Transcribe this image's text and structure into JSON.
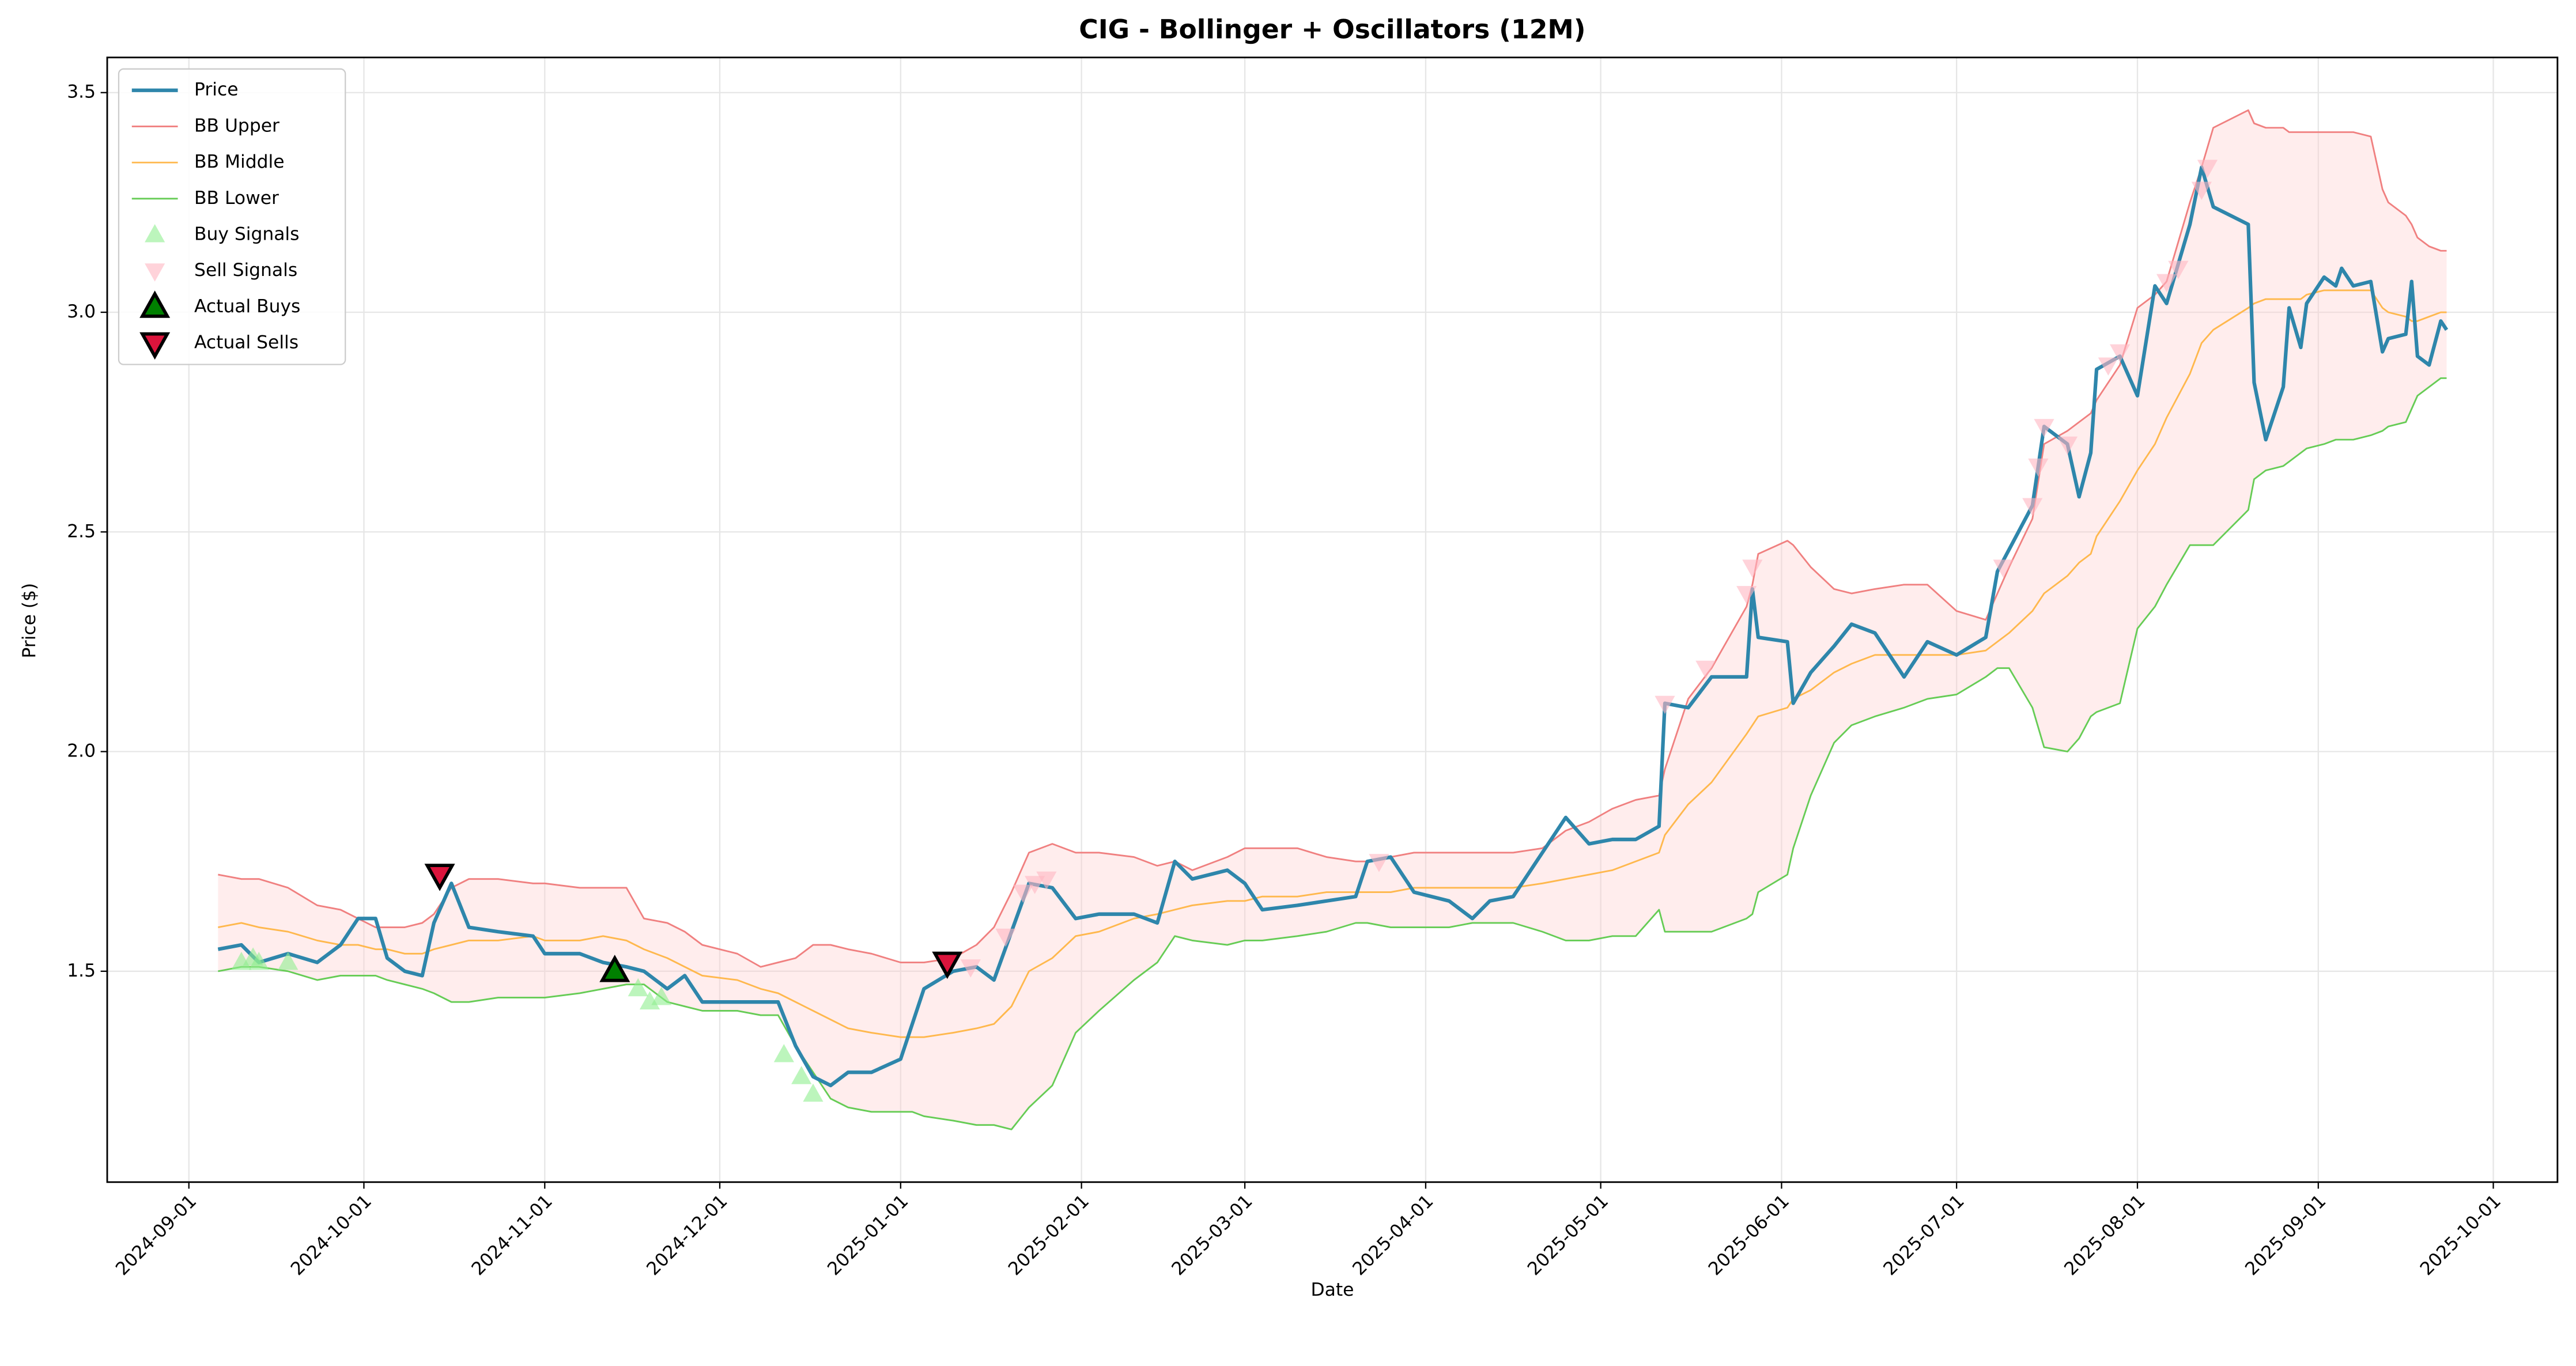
{
  "chart_data": {
    "type": "line",
    "title": "CIG - Bollinger + Oscillators (12M)",
    "xlabel": "Date",
    "ylabel": "Price ($)",
    "x": [
      "2024-09-06",
      "2024-09-10",
      "2024-09-13",
      "2024-09-18",
      "2024-09-23",
      "2024-09-27",
      "2024-09-30",
      "2024-10-03",
      "2024-10-05",
      "2024-10-08",
      "2024-10-11",
      "2024-10-13",
      "2024-10-16",
      "2024-10-19",
      "2024-10-24",
      "2024-10-30",
      "2024-11-01",
      "2024-11-07",
      "2024-11-11",
      "2024-11-15",
      "2024-11-18",
      "2024-11-22",
      "2024-11-25",
      "2024-11-28",
      "2024-12-04",
      "2024-12-08",
      "2024-12-11",
      "2024-12-14",
      "2024-12-17",
      "2024-12-20",
      "2024-12-23",
      "2024-12-27",
      "2025-01-01",
      "2025-01-03",
      "2025-01-05",
      "2025-01-10",
      "2025-01-14",
      "2025-01-17",
      "2025-01-20",
      "2025-01-23",
      "2025-01-27",
      "2025-01-31",
      "2025-02-04",
      "2025-02-10",
      "2025-02-14",
      "2025-02-17",
      "2025-02-20",
      "2025-02-26",
      "2025-03-01",
      "2025-03-04",
      "2025-03-10",
      "2025-03-15",
      "2025-03-20",
      "2025-03-22",
      "2025-03-26",
      "2025-03-30",
      "2025-04-05",
      "2025-04-09",
      "2025-04-12",
      "2025-04-16",
      "2025-04-21",
      "2025-04-25",
      "2025-04-29",
      "2025-05-03",
      "2025-05-07",
      "2025-05-11",
      "2025-05-12",
      "2025-05-16",
      "2025-05-20",
      "2025-05-26",
      "2025-05-27",
      "2025-05-28",
      "2025-06-02",
      "2025-06-03",
      "2025-06-06",
      "2025-06-10",
      "2025-06-13",
      "2025-06-17",
      "2025-06-22",
      "2025-06-26",
      "2025-07-01",
      "2025-07-06",
      "2025-07-08",
      "2025-07-10",
      "2025-07-14",
      "2025-07-16",
      "2025-07-20",
      "2025-07-22",
      "2025-07-24",
      "2025-07-25",
      "2025-07-29",
      "2025-08-01",
      "2025-08-04",
      "2025-08-06",
      "2025-08-10",
      "2025-08-12",
      "2025-08-14",
      "2025-08-20",
      "2025-08-21",
      "2025-08-23",
      "2025-08-26",
      "2025-08-27",
      "2025-08-29",
      "2025-08-30",
      "2025-09-02",
      "2025-09-04",
      "2025-09-05",
      "2025-09-07",
      "2025-09-10",
      "2025-09-12",
      "2025-09-13",
      "2025-09-16",
      "2025-09-17",
      "2025-09-18",
      "2025-09-20",
      "2025-09-22",
      "2025-09-23"
    ],
    "series": [
      {
        "name": "Price",
        "color": "#2e86ab",
        "width": 2.2,
        "values": [
          1.55,
          1.56,
          1.52,
          1.54,
          1.52,
          1.56,
          1.62,
          1.62,
          1.53,
          1.5,
          1.49,
          1.61,
          1.7,
          1.6,
          1.59,
          1.58,
          1.54,
          1.54,
          1.52,
          1.51,
          1.5,
          1.46,
          1.49,
          1.43,
          1.43,
          1.43,
          1.43,
          1.33,
          1.26,
          1.24,
          1.27,
          1.27,
          1.3,
          1.38,
          1.46,
          1.5,
          1.51,
          1.48,
          1.59,
          1.7,
          1.69,
          1.62,
          1.63,
          1.63,
          1.61,
          1.75,
          1.71,
          1.73,
          1.7,
          1.64,
          1.65,
          1.66,
          1.67,
          1.75,
          1.76,
          1.68,
          1.66,
          1.62,
          1.66,
          1.67,
          1.77,
          1.85,
          1.79,
          1.8,
          1.8,
          1.83,
          2.11,
          2.1,
          2.17,
          2.17,
          2.37,
          2.26,
          2.25,
          2.11,
          2.18,
          2.24,
          2.29,
          2.27,
          2.17,
          2.25,
          2.22,
          2.26,
          2.41,
          2.46,
          2.56,
          2.74,
          2.7,
          2.58,
          2.68,
          2.87,
          2.9,
          2.81,
          3.06,
          3.02,
          3.2,
          3.33,
          3.24,
          3.2,
          2.84,
          2.71,
          2.83,
          3.01,
          2.92,
          3.02,
          3.08,
          3.06,
          3.1,
          3.06,
          3.07,
          2.91,
          2.94,
          2.95,
          3.07,
          2.9,
          2.88,
          2.98,
          2.96
        ]
      },
      {
        "name": "BB Upper",
        "color": "#f08080",
        "width": 1,
        "values": [
          1.72,
          1.71,
          1.71,
          1.69,
          1.65,
          1.64,
          1.62,
          1.6,
          1.6,
          1.6,
          1.61,
          1.63,
          1.69,
          1.71,
          1.71,
          1.7,
          1.7,
          1.69,
          1.69,
          1.69,
          1.62,
          1.61,
          1.59,
          1.56,
          1.54,
          1.51,
          1.52,
          1.53,
          1.56,
          1.56,
          1.55,
          1.54,
          1.52,
          1.52,
          1.52,
          1.53,
          1.56,
          1.6,
          1.68,
          1.77,
          1.79,
          1.77,
          1.77,
          1.76,
          1.74,
          1.75,
          1.73,
          1.76,
          1.78,
          1.78,
          1.78,
          1.76,
          1.75,
          1.75,
          1.76,
          1.77,
          1.77,
          1.77,
          1.77,
          1.77,
          1.78,
          1.82,
          1.84,
          1.87,
          1.89,
          1.9,
          1.96,
          2.12,
          2.19,
          2.33,
          2.38,
          2.45,
          2.48,
          2.47,
          2.42,
          2.37,
          2.36,
          2.37,
          2.38,
          2.38,
          2.32,
          2.3,
          2.36,
          2.42,
          2.53,
          2.7,
          2.73,
          2.75,
          2.77,
          2.8,
          2.88,
          3.01,
          3.04,
          3.07,
          3.25,
          3.33,
          3.42,
          3.46,
          3.43,
          3.42,
          3.42,
          3.41,
          3.41,
          3.41,
          3.41,
          3.41,
          3.41,
          3.41,
          3.4,
          3.28,
          3.25,
          3.22,
          3.2,
          3.17,
          3.15,
          3.14,
          3.14
        ]
      },
      {
        "name": "BB Middle",
        "color": "#ffb84d",
        "width": 1,
        "values": [
          1.6,
          1.61,
          1.6,
          1.59,
          1.57,
          1.56,
          1.56,
          1.55,
          1.55,
          1.54,
          1.54,
          1.55,
          1.56,
          1.57,
          1.57,
          1.58,
          1.57,
          1.57,
          1.58,
          1.57,
          1.55,
          1.53,
          1.51,
          1.49,
          1.48,
          1.46,
          1.45,
          1.43,
          1.41,
          1.39,
          1.37,
          1.36,
          1.35,
          1.35,
          1.35,
          1.36,
          1.37,
          1.38,
          1.42,
          1.5,
          1.53,
          1.58,
          1.59,
          1.62,
          1.63,
          1.64,
          1.65,
          1.66,
          1.66,
          1.67,
          1.67,
          1.68,
          1.68,
          1.68,
          1.68,
          1.69,
          1.69,
          1.69,
          1.69,
          1.69,
          1.7,
          1.71,
          1.72,
          1.73,
          1.75,
          1.77,
          1.81,
          1.88,
          1.93,
          2.04,
          2.06,
          2.08,
          2.1,
          2.12,
          2.14,
          2.18,
          2.2,
          2.22,
          2.22,
          2.22,
          2.22,
          2.23,
          2.25,
          2.27,
          2.32,
          2.36,
          2.4,
          2.43,
          2.45,
          2.49,
          2.57,
          2.64,
          2.7,
          2.76,
          2.86,
          2.93,
          2.96,
          3.01,
          3.02,
          3.03,
          3.03,
          3.03,
          3.03,
          3.04,
          3.05,
          3.05,
          3.05,
          3.05,
          3.05,
          3.01,
          3.0,
          2.99,
          2.98,
          2.98,
          2.99,
          3.0,
          3.0
        ]
      },
      {
        "name": "BB Lower",
        "color": "#66cc55",
        "width": 1,
        "values": [
          1.5,
          1.51,
          1.51,
          1.5,
          1.48,
          1.49,
          1.49,
          1.49,
          1.48,
          1.47,
          1.46,
          1.45,
          1.43,
          1.43,
          1.44,
          1.44,
          1.44,
          1.45,
          1.46,
          1.47,
          1.47,
          1.43,
          1.42,
          1.41,
          1.41,
          1.4,
          1.4,
          1.33,
          1.27,
          1.21,
          1.19,
          1.18,
          1.18,
          1.18,
          1.17,
          1.16,
          1.15,
          1.15,
          1.14,
          1.19,
          1.24,
          1.36,
          1.41,
          1.48,
          1.52,
          1.58,
          1.57,
          1.56,
          1.57,
          1.57,
          1.58,
          1.59,
          1.61,
          1.61,
          1.6,
          1.6,
          1.6,
          1.61,
          1.61,
          1.61,
          1.59,
          1.57,
          1.57,
          1.58,
          1.58,
          1.64,
          1.59,
          1.59,
          1.59,
          1.62,
          1.63,
          1.68,
          1.72,
          1.78,
          1.9,
          2.02,
          2.06,
          2.08,
          2.1,
          2.12,
          2.13,
          2.17,
          2.19,
          2.19,
          2.1,
          2.01,
          2.0,
          2.03,
          2.08,
          2.09,
          2.11,
          2.28,
          2.33,
          2.38,
          2.47,
          2.47,
          2.47,
          2.55,
          2.62,
          2.64,
          2.65,
          2.66,
          2.68,
          2.69,
          2.7,
          2.71,
          2.71,
          2.71,
          2.72,
          2.73,
          2.74,
          2.75,
          2.78,
          2.81,
          2.83,
          2.85,
          2.85
        ]
      }
    ],
    "band_fill": "#ffcccc",
    "scatter_series": [
      {
        "name": "Buy Signals",
        "color": "#90ee90",
        "opacity": 0.6,
        "marker": "triangle-up",
        "edge": "none",
        "x": [
          "2024-09-10",
          "2024-09-12",
          "2024-09-13",
          "2024-09-18",
          "2024-11-17",
          "2024-11-19",
          "2024-11-21",
          "2024-12-12",
          "2024-12-15",
          "2024-12-17"
        ],
        "values": [
          1.52,
          1.53,
          1.52,
          1.52,
          1.46,
          1.43,
          1.44,
          1.31,
          1.26,
          1.22
        ]
      },
      {
        "name": "Sell Signals",
        "color": "#ffb6c1",
        "opacity": 0.6,
        "marker": "triangle-down",
        "edge": "none",
        "x": [
          "2025-01-13",
          "2025-01-19",
          "2025-01-22",
          "2025-01-24",
          "2025-01-26",
          "2025-03-24",
          "2025-05-12",
          "2025-05-19",
          "2025-05-26",
          "2025-05-27",
          "2025-07-09",
          "2025-07-14",
          "2025-07-15",
          "2025-07-16",
          "2025-07-20",
          "2025-07-27",
          "2025-07-29",
          "2025-08-06",
          "2025-08-08",
          "2025-08-12",
          "2025-08-13"
        ],
        "values": [
          1.51,
          1.58,
          1.68,
          1.7,
          1.71,
          1.75,
          2.11,
          2.19,
          2.36,
          2.42,
          2.42,
          2.56,
          2.65,
          2.74,
          2.7,
          2.88,
          2.91,
          3.07,
          3.1,
          3.28,
          3.33
        ]
      },
      {
        "name": "Actual Buys",
        "color": "#008000",
        "opacity": 1,
        "marker": "triangle-up",
        "edge": "#000000",
        "x": [
          "2024-11-13"
        ],
        "values": [
          1.5
        ]
      },
      {
        "name": "Actual Sells",
        "color": "#dc143c",
        "opacity": 1,
        "marker": "triangle-down",
        "edge": "#000000",
        "x": [
          "2024-10-14",
          "2025-01-09"
        ],
        "values": [
          1.72,
          1.52
        ]
      }
    ],
    "xlim": [
      "2024-08-18",
      "2025-10-12"
    ],
    "xticks": [
      "2024-09-01",
      "2024-10-01",
      "2024-11-01",
      "2024-12-01",
      "2025-01-01",
      "2025-02-01",
      "2025-03-01",
      "2025-04-01",
      "2025-05-01",
      "2025-06-01",
      "2025-07-01",
      "2025-08-01",
      "2025-09-01",
      "2025-10-01"
    ],
    "ylim": [
      1.02,
      3.58
    ],
    "yticks": [
      1.5,
      {
        "value": 2,
        "label": "2.0"
      },
      2.5,
      {
        "value": 3,
        "label": "3.0"
      },
      3.5
    ],
    "grid": true,
    "legend": "upper left"
  }
}
